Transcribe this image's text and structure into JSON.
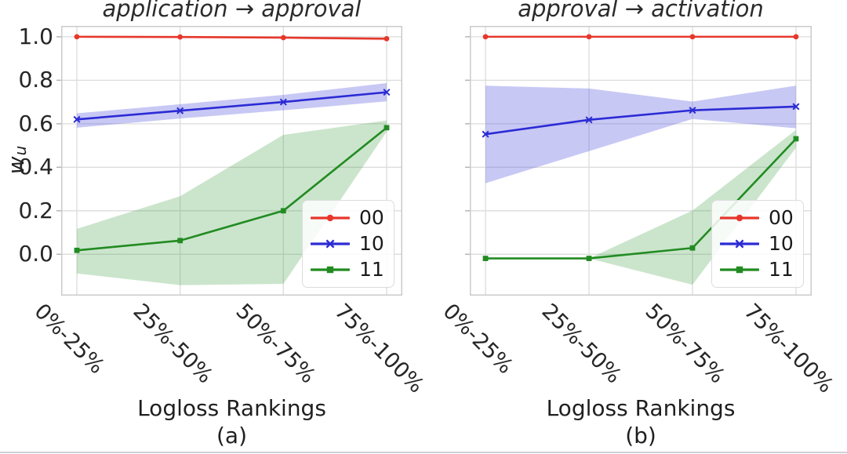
{
  "figure": {
    "background": "#ffffff",
    "ylabel_main": "w",
    "ylabel_sub": "u",
    "grid_color": "#dcdcdc",
    "spine_color": "#cbcbcb",
    "tick_mark_color": "#b5b5b5",
    "tick_text_color": "#262626",
    "bottom_rule_color": "#ccd1d5"
  },
  "chart_data": [
    {
      "type": "line",
      "title": "application → approval",
      "caption": "(a)",
      "xlabel": "Logloss Rankings",
      "ylabel": "w_u",
      "categories": [
        "0%-25%",
        "25%-50%",
        "50%-75%",
        "75%-100%"
      ],
      "ylim": [
        -0.19,
        1.05
      ],
      "y_tick_values": [
        1.0,
        0.8,
        0.6,
        0.4,
        0.2,
        0.0
      ],
      "y_tick_labels": [
        "1.0",
        "0.8",
        "0.6",
        "0.4",
        "0.2",
        "0.0"
      ],
      "grid": true,
      "legend_position": "lower right",
      "series": [
        {
          "name": "00",
          "color": "#e6372b",
          "band_color": "rgba(230,55,43,0.16)",
          "marker": "circle",
          "values": [
            1.0,
            0.999,
            0.996,
            0.991
          ],
          "band_lower": [
            0.998,
            0.996,
            0.991,
            0.983
          ],
          "band_upper": [
            1.001,
            1.001,
            1.0,
            0.998
          ]
        },
        {
          "name": "10",
          "color": "#2b2bd5",
          "band_color": "rgba(85,85,225,0.32)",
          "marker": "x",
          "values": [
            0.62,
            0.66,
            0.7,
            0.745
          ],
          "band_lower": [
            0.582,
            0.624,
            0.662,
            0.703
          ],
          "band_upper": [
            0.648,
            0.69,
            0.733,
            0.787
          ]
        },
        {
          "name": "11",
          "color": "#228b22",
          "band_color": "rgba(70,160,73,0.28)",
          "marker": "square",
          "values": [
            0.018,
            0.063,
            0.2,
            0.582
          ],
          "band_lower": [
            -0.088,
            -0.142,
            -0.136,
            0.563
          ],
          "band_upper": [
            0.117,
            0.267,
            0.549,
            0.615
          ]
        }
      ]
    },
    {
      "type": "line",
      "title": "approval → activation",
      "caption": "(b)",
      "xlabel": "Logloss Rankings",
      "ylabel": "w_u",
      "categories": [
        "0%-25%",
        "25%-50%",
        "50%-75%",
        "75%-100%"
      ],
      "ylim": [
        -0.19,
        1.05
      ],
      "y_tick_values": [
        1.0,
        0.8,
        0.6,
        0.4,
        0.2,
        0.0
      ],
      "y_tick_labels": [],
      "grid": true,
      "legend_position": "lower right",
      "series": [
        {
          "name": "00",
          "color": "#e6372b",
          "band_color": "rgba(230,55,43,0.16)",
          "marker": "circle",
          "values": [
            1.0,
            1.0,
            1.0,
            1.0
          ],
          "band_lower": [
            1.0,
            1.0,
            1.0,
            1.0
          ],
          "band_upper": [
            1.0,
            1.0,
            1.0,
            1.0
          ]
        },
        {
          "name": "10",
          "color": "#2b2bd5",
          "band_color": "rgba(85,85,225,0.32)",
          "marker": "x",
          "values": [
            0.552,
            0.618,
            0.662,
            0.679
          ],
          "band_lower": [
            0.327,
            0.474,
            0.622,
            0.579
          ],
          "band_upper": [
            0.775,
            0.762,
            0.702,
            0.775
          ]
        },
        {
          "name": "11",
          "color": "#228b22",
          "band_color": "rgba(70,160,73,0.28)",
          "marker": "square",
          "values": [
            -0.019,
            -0.019,
            0.029,
            0.531
          ],
          "band_lower": [
            -0.019,
            -0.019,
            -0.14,
            0.49
          ],
          "band_upper": [
            -0.019,
            -0.019,
            0.201,
            0.572
          ]
        }
      ]
    }
  ]
}
